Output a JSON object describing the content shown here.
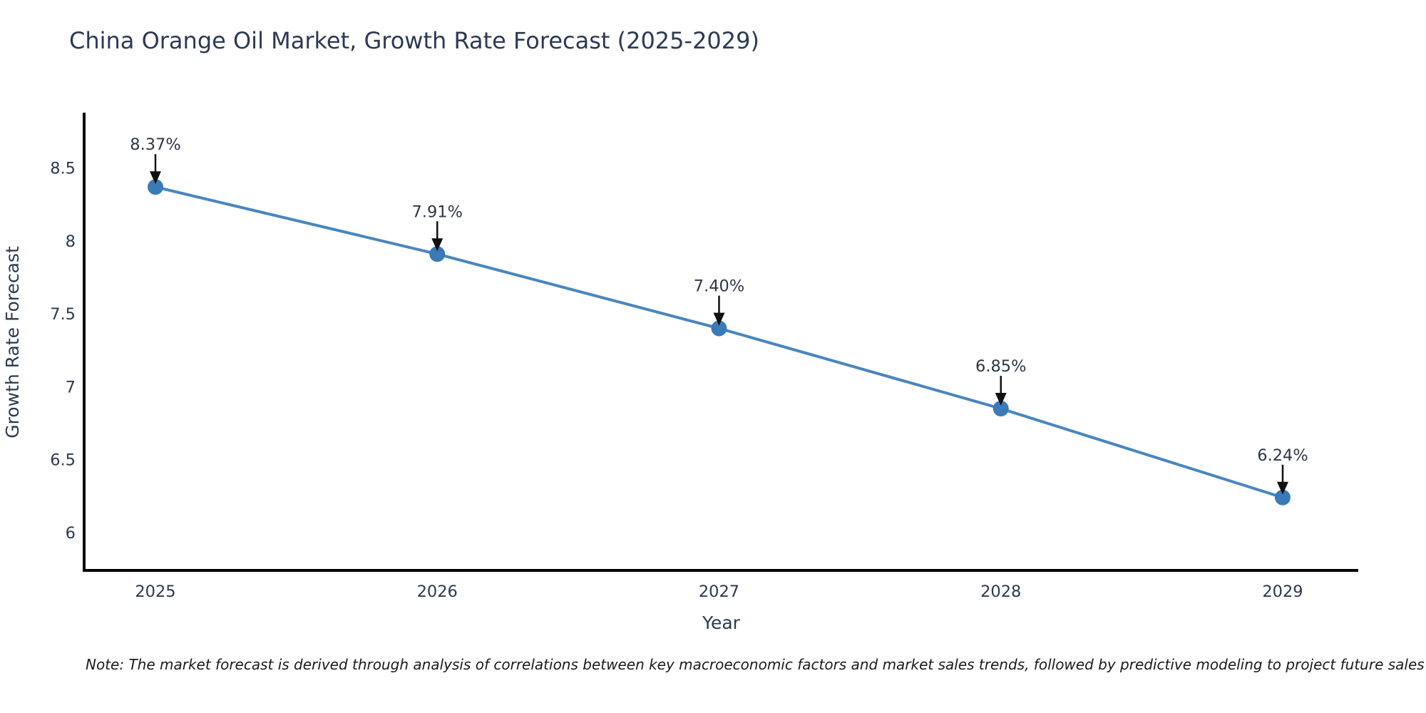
{
  "title": "China Orange Oil Market, Growth Rate Forecast (2025-2029)",
  "note": "Note: The market forecast is derived through analysis of correlations between key macroeconomic factors and market sales trends, followed by predictive modeling to project future sales",
  "chart_data": {
    "type": "line",
    "title": "China Orange Oil Market, Growth Rate Forecast (2025-2029)",
    "xlabel": "Year",
    "ylabel": "Growth Rate Forecast",
    "x": [
      2025,
      2026,
      2027,
      2028,
      2029
    ],
    "categories": [
      "2025",
      "2026",
      "2027",
      "2028",
      "2029"
    ],
    "values": [
      8.37,
      7.91,
      7.4,
      6.85,
      6.24
    ],
    "point_labels": [
      "8.37%",
      "7.91%",
      "7.40%",
      "6.85%",
      "6.24%"
    ],
    "ytick_values": [
      8.5,
      8,
      7.5,
      7,
      6.5,
      6
    ],
    "ytick_labels": [
      "8.5",
      "8",
      "7.5",
      "7",
      "6.5",
      "6"
    ],
    "ylim": [
      5.74,
      8.87
    ],
    "grid": false,
    "legend": null,
    "annotation_style": "value label above point with downward black arrow",
    "colors": {
      "line": "#4a86bf",
      "marker": "#3b7ab8",
      "axis": "#000000",
      "arrow": "#111111",
      "tick_text": "#2e3a4e",
      "axis_label_text": "#2e3a4e",
      "annotation_text": "#2f3747",
      "title_text": "#2d3a55",
      "background": "#ffffff"
    }
  }
}
